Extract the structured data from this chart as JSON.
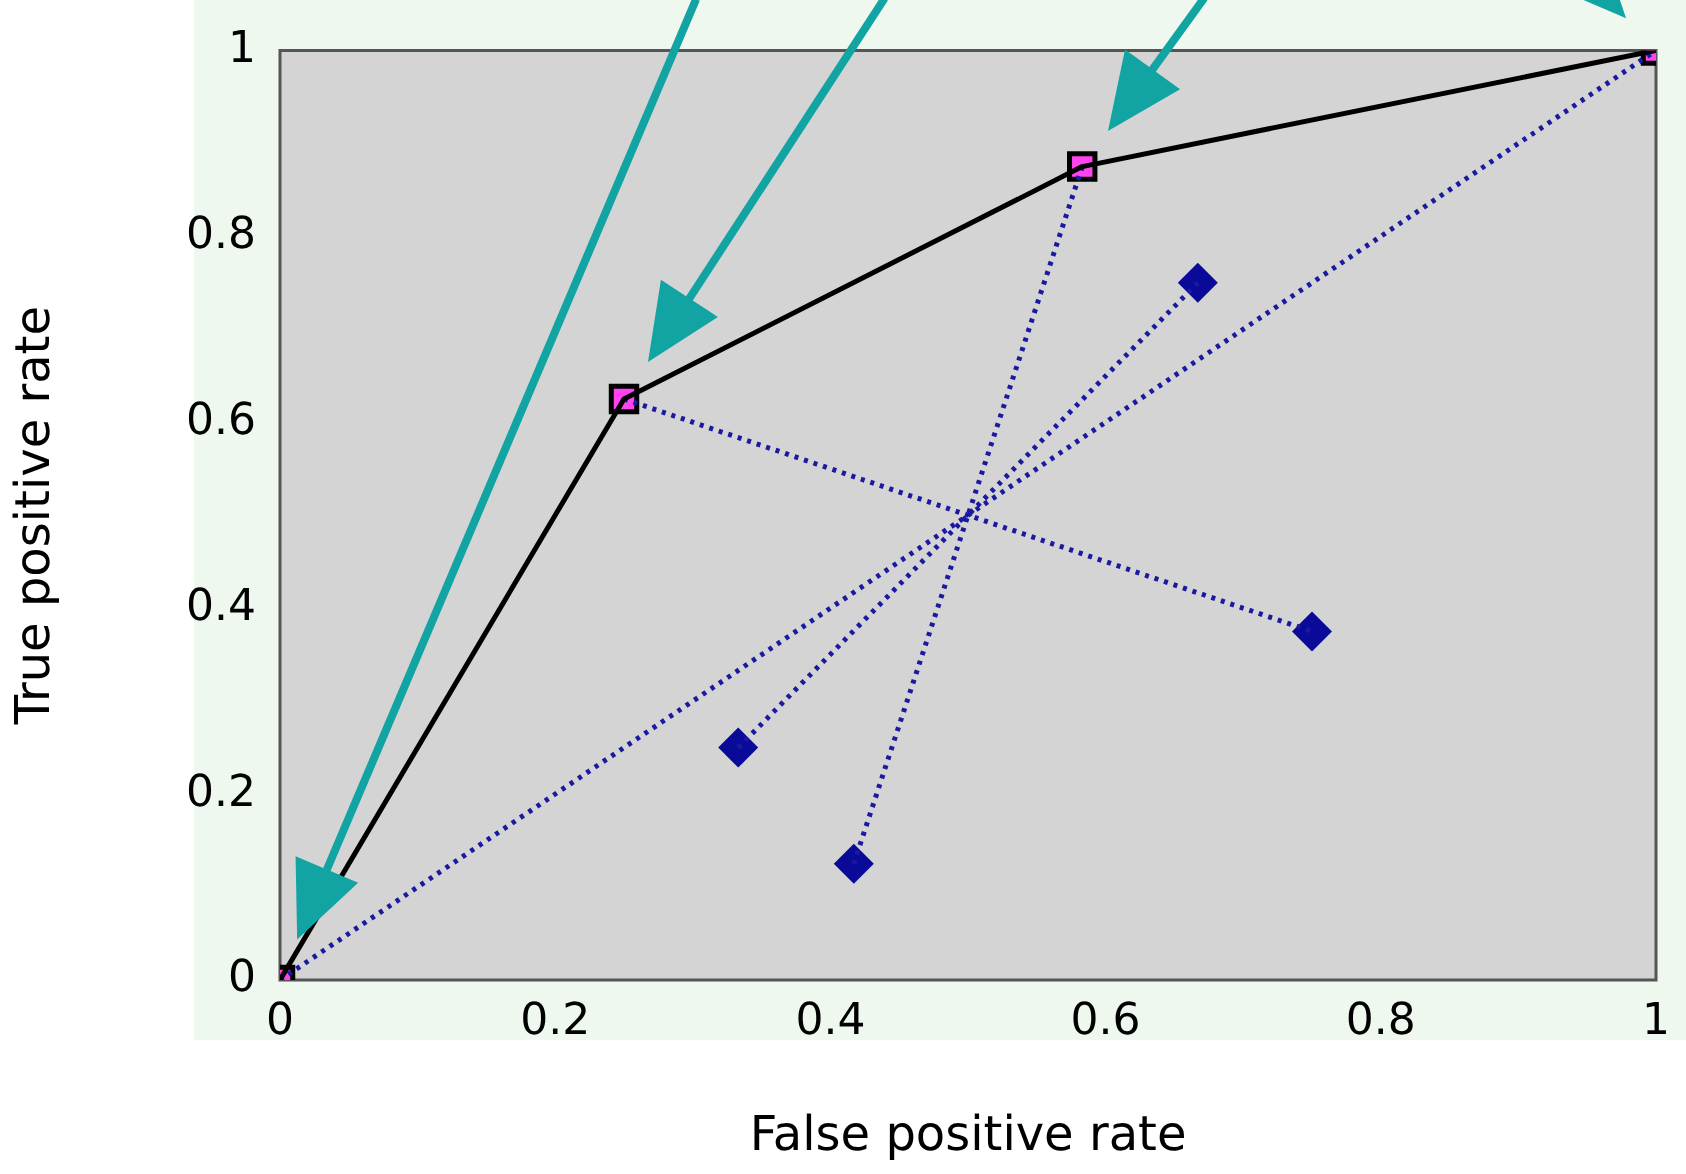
{
  "chart_data": {
    "type": "line",
    "xlabel": "False positive rate",
    "ylabel": "True positive rate",
    "xlim": [
      0,
      1
    ],
    "ylim": [
      0,
      1
    ],
    "xticks": [
      0,
      0.2,
      0.4,
      0.6,
      0.8,
      1
    ],
    "yticks": [
      0,
      0.2,
      0.4,
      0.6,
      0.8,
      1
    ],
    "grid": false,
    "legend": false,
    "series": [
      {
        "color": "#000000",
        "marker": "none",
        "line_style": "solid",
        "x": [
          0,
          0.25,
          0.583,
          1
        ],
        "values": [
          0,
          0.625,
          0.875,
          1
        ]
      },
      {
        "color": "#1a1aa0",
        "marker": "none",
        "line_style": "dotted",
        "x": [
          0,
          1
        ],
        "values": [
          0,
          1
        ]
      },
      {
        "color": "#1a1aa0",
        "marker": "none",
        "line_style": "dotted",
        "x": [
          0.25,
          0.75
        ],
        "values": [
          0.625,
          0.375
        ]
      },
      {
        "color": "#1a1aa0",
        "marker": "none",
        "line_style": "dotted",
        "x": [
          0.583,
          0.417
        ],
        "values": [
          0.875,
          0.125
        ]
      },
      {
        "color": "#1a1aa0",
        "marker": "none",
        "line_style": "dotted",
        "x": [
          0.333,
          0.667
        ],
        "values": [
          0.25,
          0.75
        ]
      },
      {
        "type": "scatter",
        "color": "#ff44ee",
        "marker": "square",
        "x": [
          0,
          0.25,
          0.583,
          1
        ],
        "values": [
          0,
          0.625,
          0.875,
          1
        ]
      },
      {
        "type": "scatter",
        "color": "#0a0a99",
        "marker": "diamond",
        "x": [
          0.333,
          0.417,
          0.667,
          0.75
        ],
        "values": [
          0.25,
          0.125,
          0.75,
          0.375
        ]
      }
    ]
  }
}
